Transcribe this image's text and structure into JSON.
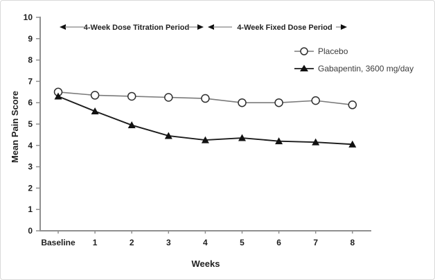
{
  "figure": {
    "background": "#ffffff",
    "border_color": "#d9d9d9"
  },
  "annotations": {
    "titration_label": "4-Week Dose Titration Period",
    "fixed_label": "4-Week Fixed Dose Period"
  },
  "legend": {
    "position": "upper-right",
    "items": [
      {
        "label": "Placebo",
        "marker": "open-circle",
        "color": "#7a7a7a"
      },
      {
        "label": "Gabapentin, 3600 mg/day",
        "marker": "filled-triangle",
        "color": "#1c1c1c"
      }
    ]
  },
  "chart_data": {
    "type": "line",
    "title": "",
    "xlabel": "Weeks",
    "ylabel": "Mean Pain Score",
    "categories": [
      "Baseline",
      "1",
      "2",
      "3",
      "4",
      "5",
      "6",
      "7",
      "8"
    ],
    "y_ticks": [
      0,
      1,
      2,
      3,
      4,
      5,
      6,
      7,
      8,
      9,
      10
    ],
    "ylim": [
      0,
      10
    ],
    "grid": false,
    "legend_position": "upper-right",
    "series": [
      {
        "name": "Placebo",
        "marker": "open-circle",
        "color": "#7a7a7a",
        "marker_fill": "#ffffff",
        "marker_stroke": "#2e2e2e",
        "values": [
          6.5,
          6.35,
          6.3,
          6.25,
          6.2,
          6.0,
          6.0,
          6.1,
          5.9
        ]
      },
      {
        "name": "Gabapentin, 3600 mg/day",
        "marker": "filled-triangle",
        "color": "#1c1c1c",
        "marker_fill": "#111111",
        "marker_stroke": "#111111",
        "values": [
          6.3,
          5.6,
          4.95,
          4.45,
          4.25,
          4.35,
          4.2,
          4.15,
          4.05
        ]
      }
    ],
    "period_annotations": [
      {
        "text": "4-Week Dose Titration Period",
        "x_range": [
          "Baseline",
          "4"
        ]
      },
      {
        "text": "4-Week Fixed Dose Period",
        "x_range": [
          "4",
          "8"
        ]
      }
    ]
  }
}
